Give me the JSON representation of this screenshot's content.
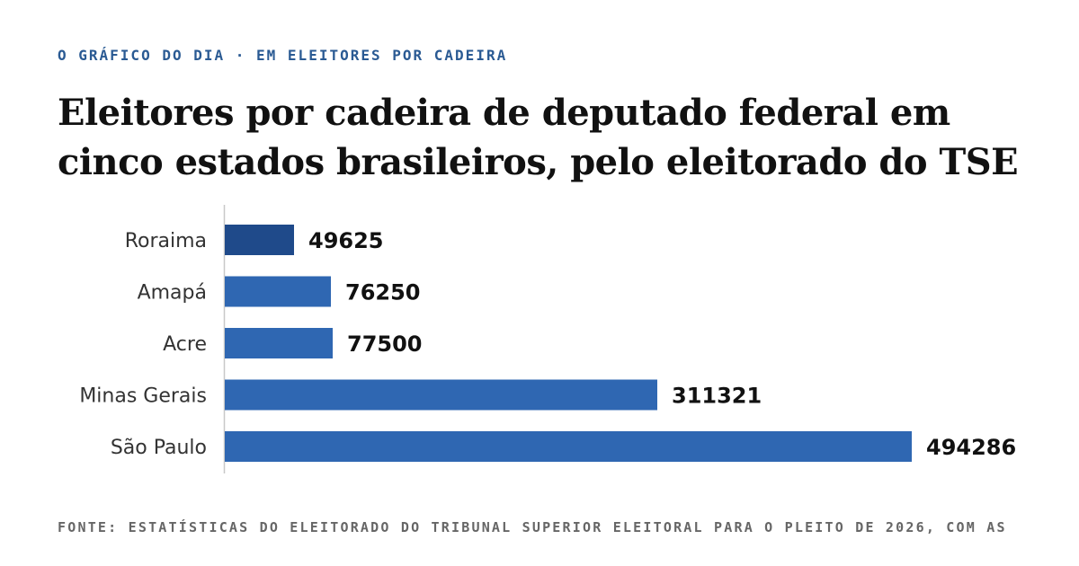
{
  "header": {
    "kicker": "O GRÁFICO DO DIA · EM ELEITORES POR CADEIRA",
    "title": "Eleitores por cadeira de deputado federal em cinco estados brasileiros, pelo eleitorado do TSE"
  },
  "footer": {
    "source": "FONTE: ESTATÍSTICAS DO ELEITORADO DO TRIBUNAL SUPERIOR ELEITORAL PARA O PLEITO DE 2026, COM AS"
  },
  "colors": {
    "bar": "#2f67b2",
    "bar_highlight": "#1f4a8a",
    "kicker": "#2a5a93",
    "axis": "#c8c8c8",
    "label": "#333333",
    "value": "#111111"
  },
  "chart_data": {
    "type": "bar",
    "orientation": "horizontal",
    "categories": [
      "Roraima",
      "Amapá",
      "Acre",
      "Minas Gerais",
      "São Paulo"
    ],
    "values": [
      49625,
      76250,
      77500,
      311321,
      494286
    ],
    "highlight": "Roraima",
    "xlim": [
      0,
      494286
    ],
    "grid": false,
    "legend": "none",
    "data_labels": true
  }
}
